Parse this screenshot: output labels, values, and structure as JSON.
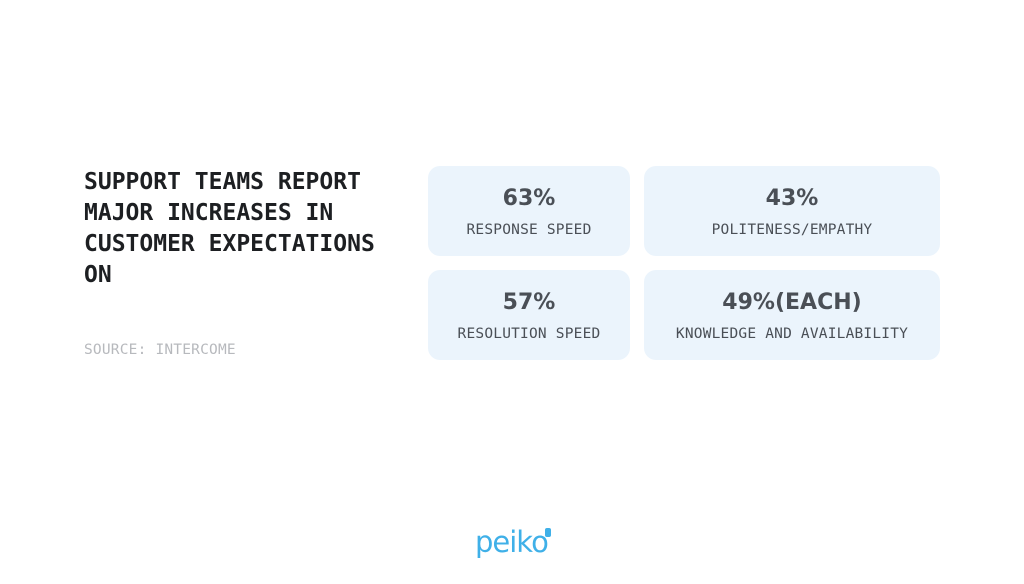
{
  "headline": "SUPPORT TEAMS REPORT MAJOR INCREASES IN CUSTOMER EXPECTATIONS ON",
  "source": "SOURCE: INTERCOME",
  "stats": [
    {
      "value": "63%",
      "label": "RESPONSE SPEED"
    },
    {
      "value": "43%",
      "label": "POLITENESS/EMPATHY"
    },
    {
      "value": "57%",
      "label": "RESOLUTION SPEED"
    },
    {
      "value": "49%(EACH)",
      "label": "KNOWLEDGE AND AVAILABILITY"
    }
  ],
  "logo": {
    "text": "peiko",
    "color": "#3fb0e8"
  },
  "colors": {
    "card_bg": "#ebf4fc",
    "headline": "#1d1f22",
    "stat_text": "#4a4f56",
    "source": "#b7b9bd"
  }
}
